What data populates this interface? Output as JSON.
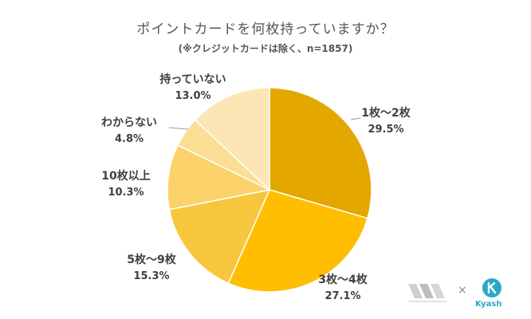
{
  "chart_data": {
    "type": "pie",
    "title": "ポイントカードを何枚持っていますか？",
    "subtitle": "(※クレジットカードは除く、n=1857)",
    "categories": [
      "1枚〜2枚",
      "3枚〜4枚",
      "5枚〜9枚",
      "10枚以上",
      "わからない",
      "持っていない"
    ],
    "values": [
      29.5,
      27.1,
      15.3,
      10.3,
      4.8,
      13.0
    ],
    "value_labels": [
      "29.5%",
      "27.1%",
      "15.3%",
      "10.3%",
      "4.8%",
      "13.0%"
    ],
    "colors": [
      "#E3A700",
      "#FFBE00",
      "#F8C63D",
      "#FBD26A",
      "#FCDD94",
      "#FDE6B5"
    ],
    "start": "12 o'clock",
    "direction": "clockwise"
  },
  "branding": {
    "partner_mark": "×",
    "kyash_name": "Kyash",
    "colors": {
      "kyash": "#2BA8C8",
      "logo_gray": "#BDBDBD"
    },
    "icons": [
      "tribe-logo-icon",
      "kyash-logo-icon"
    ]
  }
}
